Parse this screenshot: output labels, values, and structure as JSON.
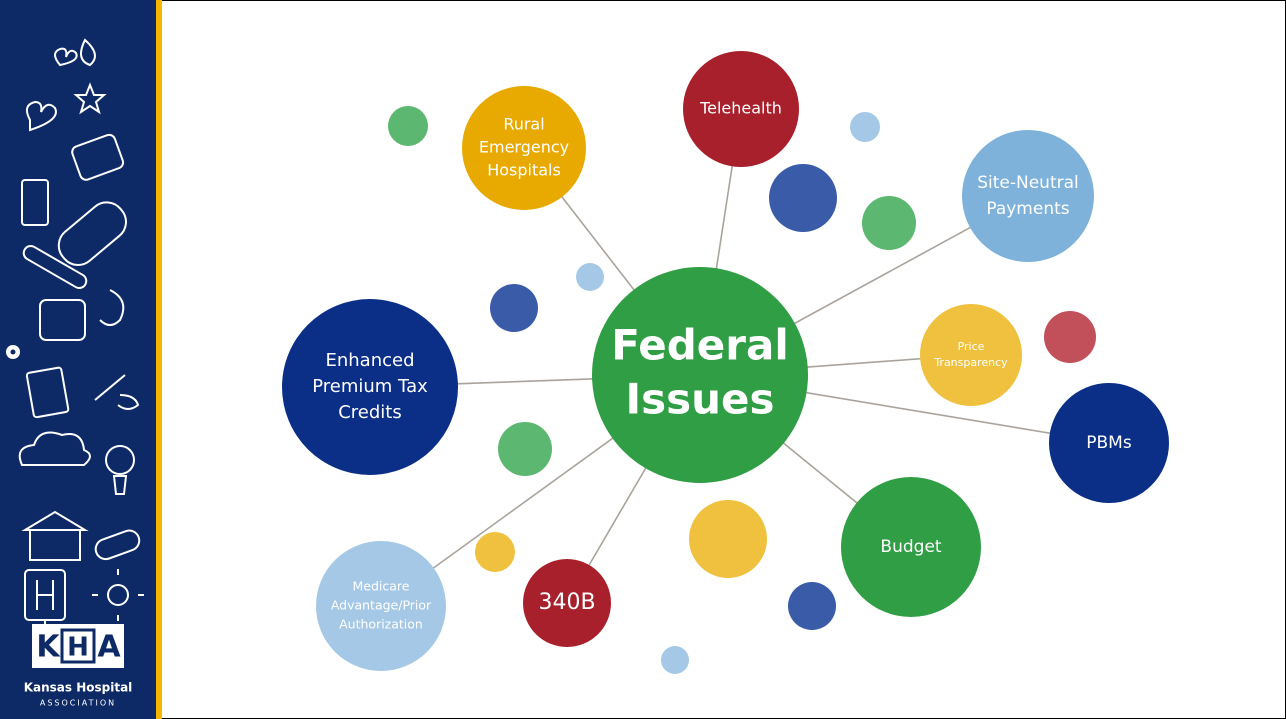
{
  "center": {
    "lines": [
      "Federal",
      "Issues"
    ]
  },
  "nodes": [
    {
      "lines": [
        "Rural",
        "Emergency",
        "Hospitals"
      ],
      "color": "#e8a900"
    },
    {
      "lines": [
        "Telehealth"
      ],
      "color": "#a8202b"
    },
    {
      "lines": [
        "Site-Neutral",
        "Payments"
      ],
      "color": "#7eb2da"
    },
    {
      "lines": [
        "Price",
        "Transparency"
      ],
      "color": "#f0c13f"
    },
    {
      "lines": [
        "PBMs"
      ],
      "color": "#0b2e86"
    },
    {
      "lines": [
        "Budget"
      ],
      "color": "#2f9e44"
    },
    {
      "lines": [
        "340B"
      ],
      "color": "#a8202b"
    },
    {
      "lines": [
        "Medicare",
        "Advantage/Prior",
        "Authorization"
      ],
      "color": "#a5c8e7"
    },
    {
      "lines": [
        "Enhanced",
        "Premium Tax",
        "Credits"
      ],
      "color": "#0b2e86"
    }
  ],
  "logo": {
    "letters": [
      "K",
      "H",
      "A"
    ],
    "name": "Kansas Hospital",
    "subname": "ASSOCIATION"
  }
}
